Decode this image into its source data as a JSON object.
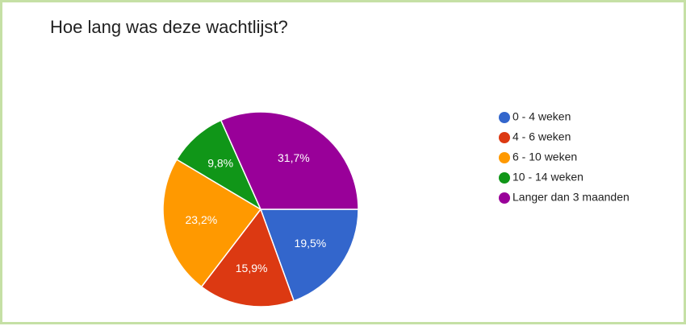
{
  "chart_data": {
    "type": "pie",
    "title": "Hoe lang was deze wachtlijst?",
    "categories": [
      "0 - 4 weken",
      "4 - 6 weken",
      "6 - 10 weken",
      "10 - 14 weken",
      "Langer dan 3 maanden"
    ],
    "values": [
      19.5,
      15.9,
      23.2,
      9.8,
      31.7
    ],
    "value_labels": [
      "19,5%",
      "15,9%",
      "23,2%",
      "9,8%",
      "31,7%"
    ],
    "colors": [
      "#3366cc",
      "#dc3912",
      "#ff9900",
      "#109618",
      "#990099"
    ],
    "legend": "right"
  }
}
